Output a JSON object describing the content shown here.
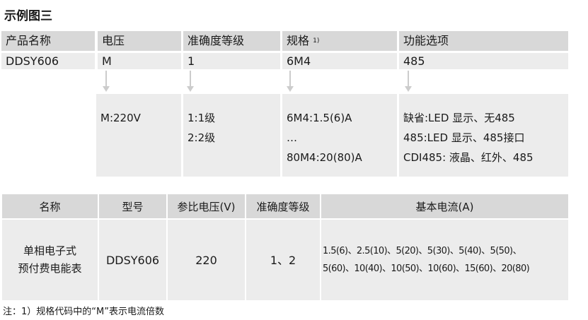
{
  "title": "示例图三",
  "top_table": {
    "headers": [
      "产品名称",
      "电压",
      "准确度等级",
      "规格",
      "功能选项"
    ],
    "spec_sup": "1)",
    "values": [
      "DDSY606",
      "M",
      "1",
      "6M4",
      "485"
    ],
    "details": {
      "voltage": [
        "M:220V"
      ],
      "accuracy": [
        "1:1级",
        "2:2级"
      ],
      "spec": [
        "6M4:1.5(6)A",
        "…",
        "80M4:20(80)A"
      ],
      "function": [
        "缺省:LED 显示、无485",
        "485:LED 显示、485接口",
        "CDI485: 液晶、红外、485"
      ]
    }
  },
  "bottom_table": {
    "headers": [
      "名称",
      "型号",
      "参比电压(V)",
      "准确度等级",
      "基本电流(A)"
    ],
    "row": {
      "name_line1": "单相电子式",
      "name_line2": "预付费电能表",
      "model": "DDSY606",
      "voltage": "220",
      "accuracy": "1、2",
      "current_line1": "1.5(6)、2.5(10)、5(20)、5(30)、5(40)、5(50)、",
      "current_line2": "5(60)、10(40)、10(50)、10(60)、15(60)、20(80)"
    }
  },
  "note": "注：1）规格代码中的“M”表示电流倍数"
}
